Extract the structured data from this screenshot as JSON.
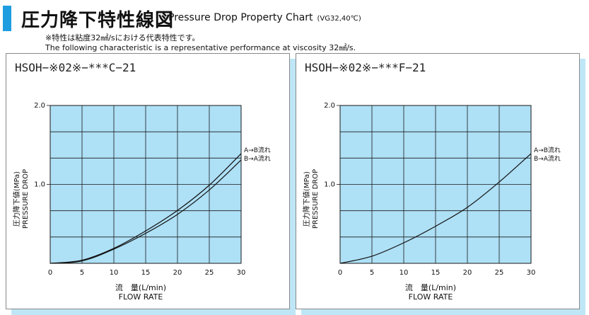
{
  "header": {
    "title_jp": "圧力降下特性線図",
    "title_en": "Pressure Drop Property Chart",
    "condition": "(VG32,40℃)",
    "note_jp": "※特性は粘度32㎟/sにおける代表特性です。",
    "note_en": "The following characteristic is a representative performance at viscosity 32㎟/s."
  },
  "colors": {
    "plot_bg": "#aee0f6",
    "grid": "#1a1a1a",
    "curve": "#111111",
    "accent": "#1e9de0"
  },
  "chart_data": [
    {
      "type": "line",
      "title": "HSOH−※02※−***C−21",
      "ylabel_jp": "圧力降下値(MPa)",
      "ylabel_en": "PRESSURE DROP",
      "xlabel_jp": "流　量(L/min)",
      "xlabel_en": "FLOW RATE",
      "xlim": [
        0,
        30
      ],
      "ylim": [
        0,
        2.0
      ],
      "x_ticks": [
        0,
        5,
        10,
        15,
        20,
        25,
        30
      ],
      "y_ticks": [
        1.0,
        2.0
      ],
      "y_tick_labels": [
        "1.0",
        "2.0"
      ],
      "grid": true,
      "series": [
        {
          "name": "A→B流れ",
          "x": [
            0,
            5,
            10,
            15,
            20,
            25,
            30
          ],
          "y": [
            0.0,
            0.04,
            0.19,
            0.41,
            0.67,
            0.99,
            1.39
          ]
        },
        {
          "name": "B→A流れ",
          "x": [
            0,
            5,
            10,
            15,
            20,
            25,
            30
          ],
          "y": [
            0.0,
            0.03,
            0.18,
            0.38,
            0.62,
            0.93,
            1.31
          ]
        }
      ],
      "legend_lines": [
        "A→B流れ",
        "B→A流れ"
      ]
    },
    {
      "type": "line",
      "title": "HSOH−※02※−***F−21",
      "ylabel_jp": "圧力降下値(MPa)",
      "ylabel_en": "PRESSURE DROP",
      "xlabel_jp": "流　量(L/min)",
      "xlabel_en": "FLOW RATE",
      "xlim": [
        0,
        30
      ],
      "ylim": [
        0,
        2.0
      ],
      "x_ticks": [
        0,
        5,
        10,
        15,
        20,
        25,
        30
      ],
      "y_ticks": [
        1.0,
        2.0
      ],
      "y_tick_labels": [
        "1.0",
        "2.0"
      ],
      "grid": true,
      "series": [
        {
          "name": "A→B流れ, B→A流れ",
          "x": [
            0,
            5,
            10,
            15,
            20,
            25,
            30
          ],
          "y": [
            0.0,
            0.09,
            0.26,
            0.47,
            0.71,
            1.03,
            1.39
          ]
        }
      ],
      "legend_lines": [
        "A→B流れ",
        "B→A流れ"
      ]
    }
  ]
}
